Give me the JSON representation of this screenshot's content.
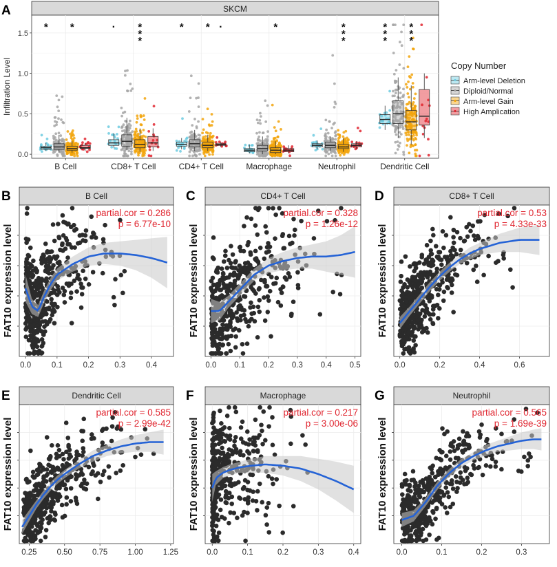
{
  "colors": {
    "arm_deletion": "#6dcbe0",
    "diploid": "#a6a6a6",
    "arm_gain": "#f2a50c",
    "high_amp": "#e0252f",
    "fit_line": "#2563d6",
    "band": "#c9c9c9",
    "annotation": "#e0252f",
    "strip_bg": "#d9d9d9",
    "points": "#2b2b2b"
  },
  "chart_data": [
    {
      "type": "box",
      "panel_letter": "A",
      "strip_title": "SKCM",
      "ylabel": "Infiltration Level",
      "ylim": [
        -0.05,
        1.72
      ],
      "yticks": [
        "0.0",
        "0.5",
        "1.0",
        "1.5"
      ],
      "ytick_values": [
        0,
        0.5,
        1.0,
        1.5
      ],
      "categories": [
        "B Cell",
        "CD8+ T Cell",
        "CD4+ T Cell",
        "Macrophage",
        "Neutrophil",
        "Dendritic Cell"
      ],
      "legend_title": "Copy Number",
      "series": [
        {
          "name": "Arm-level Deletion",
          "color_key": "arm_deletion",
          "boxes": [
            [
              0.04,
              0.06,
              0.08,
              0.1,
              0.14
            ],
            [
              0.08,
              0.11,
              0.14,
              0.18,
              0.26
            ],
            [
              0.06,
              0.1,
              0.12,
              0.15,
              0.2
            ],
            [
              0.01,
              0.03,
              0.05,
              0.07,
              0.12
            ],
            [
              0.06,
              0.09,
              0.11,
              0.13,
              0.17
            ],
            [
              0.3,
              0.38,
              0.43,
              0.49,
              0.6
            ]
          ]
        },
        {
          "name": "Diploid/Normal",
          "color_key": "diploid",
          "boxes": [
            [
              0.02,
              0.06,
              0.09,
              0.13,
              0.24
            ],
            [
              0.05,
              0.1,
              0.16,
              0.24,
              0.45
            ],
            [
              0.04,
              0.09,
              0.13,
              0.18,
              0.3
            ],
            [
              0.0,
              0.04,
              0.07,
              0.11,
              0.22
            ],
            [
              0.04,
              0.08,
              0.11,
              0.15,
              0.22
            ],
            [
              0.2,
              0.38,
              0.5,
              0.66,
              0.95
            ]
          ]
        },
        {
          "name": "Arm-level Gain",
          "color_key": "arm_gain",
          "boxes": [
            [
              0.02,
              0.05,
              0.07,
              0.1,
              0.16
            ],
            [
              0.03,
              0.08,
              0.12,
              0.18,
              0.32
            ],
            [
              0.04,
              0.08,
              0.11,
              0.15,
              0.24
            ],
            [
              0.0,
              0.02,
              0.05,
              0.08,
              0.16
            ],
            [
              0.03,
              0.07,
              0.09,
              0.12,
              0.2
            ],
            [
              0.12,
              0.3,
              0.4,
              0.54,
              0.85
            ]
          ]
        },
        {
          "name": "High Amplication",
          "color_key": "high_amp",
          "boxes": [
            [
              0.04,
              0.07,
              0.08,
              0.11,
              0.14
            ],
            [
              0.04,
              0.09,
              0.14,
              0.22,
              0.32
            ],
            [
              0.09,
              0.11,
              0.12,
              0.13,
              0.15
            ],
            [
              0.01,
              0.03,
              0.05,
              0.07,
              0.11
            ],
            [
              0.06,
              0.09,
              0.11,
              0.13,
              0.16
            ],
            [
              0.2,
              0.36,
              0.47,
              0.8,
              1.0
            ]
          ]
        }
      ],
      "significance": [
        {
          "category": "B Cell",
          "series": "Arm-level Deletion",
          "label": "*"
        },
        {
          "category": "B Cell",
          "series": "Arm-level Gain",
          "label": "*"
        },
        {
          "category": "CD8+ T Cell",
          "series": "Arm-level Deletion",
          "label": "·"
        },
        {
          "category": "CD8+ T Cell",
          "series": "Arm-level Gain",
          "label": "***"
        },
        {
          "category": "CD4+ T Cell",
          "series": "Arm-level Deletion",
          "label": "*"
        },
        {
          "category": "CD4+ T Cell",
          "series": "Arm-level Gain",
          "label": "*"
        },
        {
          "category": "CD4+ T Cell",
          "series": "High Amplication",
          "label": "·"
        },
        {
          "category": "Macrophage",
          "series": "Arm-level Gain",
          "label": "*"
        },
        {
          "category": "Neutrophil",
          "series": "Arm-level Gain",
          "label": "***"
        },
        {
          "category": "Dendritic Cell",
          "series": "Arm-level Deletion",
          "label": "***"
        },
        {
          "category": "Dendritic Cell",
          "series": "Arm-level Gain",
          "label": "***"
        }
      ]
    },
    {
      "type": "scatter",
      "panel_letter": "B",
      "strip_title": "B Cell",
      "ylabel": "FAT10 expression level",
      "xlim": [
        -0.02,
        0.47
      ],
      "xticks": [
        "0.0",
        "0.1",
        "0.2",
        "0.3",
        "0.4"
      ],
      "xtick_values": [
        0,
        0.1,
        0.2,
        0.3,
        0.4
      ],
      "annotation_cor": "partial.cor = 0.286",
      "annotation_p": "p = 6.77e-10",
      "fit_x": [
        0.0,
        0.02,
        0.04,
        0.06,
        0.08,
        0.1,
        0.15,
        0.2,
        0.25,
        0.3,
        0.35,
        0.4,
        0.45
      ],
      "fit_y": [
        0.45,
        0.33,
        0.3,
        0.4,
        0.48,
        0.54,
        0.61,
        0.66,
        0.68,
        0.68,
        0.67,
        0.65,
        0.62
      ],
      "band_half": [
        0.09,
        0.05,
        0.04,
        0.04,
        0.04,
        0.04,
        0.05,
        0.06,
        0.07,
        0.08,
        0.1,
        0.13,
        0.17
      ],
      "cloud": {
        "seed": 11,
        "n": 480,
        "x_scale": 0.075,
        "x_max": 0.45,
        "noise": 0.17
      }
    },
    {
      "type": "scatter",
      "panel_letter": "C",
      "strip_title": "CD4+ T Cell",
      "ylabel": "FAT10 expression level",
      "xlim": [
        -0.02,
        0.52
      ],
      "xticks": [
        "0.0",
        "0.1",
        "0.2",
        "0.3",
        "0.4",
        "0.5"
      ],
      "xtick_values": [
        0,
        0.1,
        0.2,
        0.3,
        0.4,
        0.5
      ],
      "annotation_cor": "partial.cor = 0.328",
      "annotation_p": "p = 1.26e-12",
      "fit_x": [
        0.0,
        0.03,
        0.06,
        0.09,
        0.12,
        0.15,
        0.2,
        0.25,
        0.3,
        0.35,
        0.4,
        0.45,
        0.5
      ],
      "fit_y": [
        0.3,
        0.3,
        0.36,
        0.42,
        0.48,
        0.54,
        0.6,
        0.63,
        0.65,
        0.66,
        0.66,
        0.67,
        0.69
      ],
      "band_half": [
        0.08,
        0.06,
        0.04,
        0.04,
        0.04,
        0.04,
        0.05,
        0.06,
        0.07,
        0.08,
        0.1,
        0.13,
        0.17
      ],
      "cloud": {
        "seed": 23,
        "n": 470,
        "x_scale": 0.11,
        "x_max": 0.5,
        "noise": 0.17
      }
    },
    {
      "type": "scatter",
      "panel_letter": "D",
      "strip_title": "CD8+ T Cell",
      "ylabel": "FAT10 expression level",
      "xlim": [
        -0.03,
        0.75
      ],
      "xticks": [
        "0.0",
        "0.2",
        "0.4",
        "0.6"
      ],
      "xtick_values": [
        0,
        0.2,
        0.4,
        0.6
      ],
      "annotation_cor": "partial.cor = 0.53",
      "annotation_p": "p = 4.33e-33",
      "fit_x": [
        0.0,
        0.05,
        0.1,
        0.15,
        0.2,
        0.25,
        0.3,
        0.35,
        0.4,
        0.45,
        0.5,
        0.55,
        0.6,
        0.65,
        0.7
      ],
      "fit_y": [
        0.22,
        0.3,
        0.38,
        0.46,
        0.53,
        0.59,
        0.64,
        0.68,
        0.71,
        0.73,
        0.75,
        0.76,
        0.77,
        0.77,
        0.77
      ],
      "band_half": [
        0.04,
        0.03,
        0.03,
        0.03,
        0.03,
        0.03,
        0.03,
        0.04,
        0.04,
        0.05,
        0.06,
        0.07,
        0.08,
        0.09,
        0.1
      ],
      "cloud": {
        "seed": 37,
        "n": 470,
        "x_scale": 0.14,
        "x_max": 0.72,
        "noise": 0.13
      }
    },
    {
      "type": "scatter",
      "panel_letter": "E",
      "strip_title": "Dendritic Cell",
      "ylabel": "FAT10 expression level",
      "xlim": [
        0.18,
        1.27
      ],
      "xticks": [
        "0.25",
        "0.50",
        "0.75",
        "1.00",
        "1.25"
      ],
      "xtick_values": [
        0.25,
        0.5,
        0.75,
        1.0,
        1.25
      ],
      "annotation_cor": "partial.cor = 0.585",
      "annotation_p": "p = 2.99e-42",
      "fit_x": [
        0.2,
        0.25,
        0.3,
        0.35,
        0.4,
        0.45,
        0.5,
        0.6,
        0.7,
        0.8,
        0.9,
        1.0,
        1.1,
        1.2
      ],
      "fit_y": [
        0.12,
        0.2,
        0.28,
        0.35,
        0.41,
        0.46,
        0.5,
        0.57,
        0.63,
        0.67,
        0.7,
        0.72,
        0.73,
        0.73
      ],
      "band_half": [
        0.05,
        0.04,
        0.03,
        0.03,
        0.03,
        0.03,
        0.03,
        0.03,
        0.04,
        0.04,
        0.05,
        0.06,
        0.07,
        0.09
      ],
      "cloud": {
        "seed": 51,
        "n": 480,
        "x_min": 0.21,
        "x_scale": 0.22,
        "x_max": 1.22,
        "noise": 0.13
      }
    },
    {
      "type": "scatter",
      "panel_letter": "F",
      "strip_title": "Macrophage",
      "ylabel": "FAT10 expression level",
      "xlim": [
        -0.02,
        0.42
      ],
      "xticks": [
        "0.0",
        "0.1",
        "0.2",
        "0.3",
        "0.4"
      ],
      "xtick_values": [
        0,
        0.1,
        0.2,
        0.3,
        0.4
      ],
      "annotation_cor": "partial.cor = 0.217",
      "annotation_p": "p = 3.00e-06",
      "fit_x": [
        0.0,
        0.01,
        0.03,
        0.05,
        0.08,
        0.11,
        0.15,
        0.2,
        0.25,
        0.3,
        0.35,
        0.4
      ],
      "fit_y": [
        0.4,
        0.47,
        0.51,
        0.53,
        0.55,
        0.56,
        0.57,
        0.56,
        0.54,
        0.5,
        0.45,
        0.39
      ],
      "band_half": [
        0.1,
        0.05,
        0.04,
        0.04,
        0.04,
        0.05,
        0.06,
        0.07,
        0.09,
        0.11,
        0.14,
        0.17
      ],
      "cloud": {
        "seed": 67,
        "n": 470,
        "x_scale": 0.07,
        "x_max": 0.4,
        "noise": 0.2,
        "x_pile": 0.28
      }
    },
    {
      "type": "scatter",
      "panel_letter": "G",
      "strip_title": "Neutrophil",
      "ylabel": "FAT10 expression level",
      "xlim": [
        -0.02,
        0.37
      ],
      "xticks": [
        "0.0",
        "0.1",
        "0.2",
        "0.3"
      ],
      "xtick_values": [
        0,
        0.1,
        0.2,
        0.3
      ],
      "annotation_cor": "partial.cor = 0.565",
      "annotation_p": "p = 1.69e-39",
      "fit_x": [
        0.0,
        0.03,
        0.06,
        0.09,
        0.12,
        0.15,
        0.18,
        0.21,
        0.24,
        0.27,
        0.3,
        0.33,
        0.35
      ],
      "fit_y": [
        0.17,
        0.2,
        0.3,
        0.42,
        0.51,
        0.58,
        0.63,
        0.67,
        0.7,
        0.72,
        0.74,
        0.75,
        0.75
      ],
      "band_half": [
        0.05,
        0.04,
        0.03,
        0.03,
        0.03,
        0.03,
        0.03,
        0.04,
        0.04,
        0.05,
        0.06,
        0.07,
        0.08
      ],
      "cloud": {
        "seed": 83,
        "n": 480,
        "x_scale": 0.085,
        "x_max": 0.35,
        "noise": 0.13
      }
    }
  ]
}
